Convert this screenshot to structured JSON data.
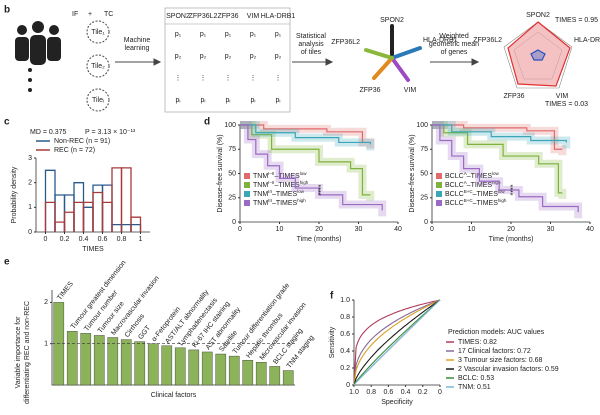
{
  "panel_b": {
    "label": "b",
    "inputs": [
      "IF",
      "+",
      "TC"
    ],
    "tiles": [
      "Tile₁",
      "Tile₂",
      "Tileᵢ"
    ],
    "step1": [
      "Machine",
      "learning"
    ],
    "table": {
      "header": [
        "SPON2",
        "ZFP36L2",
        "ZFP36",
        "VIM",
        "HLA-DRB1"
      ],
      "rows": [
        "p₁",
        "p₂",
        "⋮",
        "pᵢ"
      ]
    },
    "step2": [
      "Statistical",
      "analysis",
      "of tiles"
    ],
    "star_genes": [
      "SPON2",
      "HLA-DRB1",
      "VIM",
      "ZFP36",
      "ZFP36L2"
    ],
    "step3": [
      "Weighted",
      "geometric mean",
      "of genes"
    ],
    "radar_genes": [
      "SPON2",
      "HLA-DRB1",
      "VIM",
      "ZFP36",
      "ZFP36L2"
    ],
    "times_high": "TIMES = 0.95",
    "times_low": "TIMES = 0.03"
  },
  "panel_c": {
    "label": "c",
    "stats": [
      "MD = 0.375",
      "P = 3.13 × 10⁻¹³"
    ],
    "xlabel": "TIMES",
    "ylabel": "Probability density",
    "bins": [
      0,
      0.1,
      0.2,
      0.3,
      0.4,
      0.5,
      0.6,
      0.7,
      0.8,
      0.9,
      1.0
    ],
    "series": [
      {
        "name": "Non-REC (n = 91)",
        "color": "#2a5a8c",
        "values": [
          2.5,
          1.5,
          1.5,
          2.0,
          1.0,
          1.9,
          1.9,
          0.3,
          0.3,
          0.3
        ]
      },
      {
        "name": "REC (n = 72)",
        "color": "#a83a3a",
        "values": [
          1.2,
          0.4,
          0.8,
          1.2,
          1.2,
          1.6,
          1.2,
          2.6,
          2.6,
          0.6
        ]
      }
    ],
    "xlim": [
      -0.1,
      1.1
    ],
    "ylim": [
      0,
      3
    ],
    "xticks": [
      0,
      0.2,
      0.4,
      0.6,
      0.8,
      1.0
    ],
    "yticks": [
      0,
      1,
      2,
      3
    ]
  },
  "panel_d": {
    "label": "d",
    "ylabel": "Disease-free survival (%)",
    "xlabel": "Time (months)",
    "xlim": [
      0,
      40
    ],
    "ylim": [
      0,
      100
    ],
    "xticks": [
      0,
      10,
      20,
      30,
      40
    ],
    "yticks": [
      0,
      25,
      50,
      75,
      100
    ],
    "stars": "****",
    "plots": [
      {
        "series": [
          {
            "name": [
              "TNM",
              "I–II",
              "–TIMES",
              "low"
            ],
            "color": "#e06a6a",
            "x": [
              0,
              6,
              22,
              31,
              33
            ],
            "values": [
              100,
              96,
              93,
              82,
              82
            ]
          },
          {
            "name": [
              "TNM",
              "I–II",
              "–TIMES",
              "high"
            ],
            "color": "#7fb23a",
            "x": [
              0,
              3,
              8,
              20,
              28,
              31,
              33
            ],
            "values": [
              100,
              90,
              75,
              62,
              55,
              28,
              28
            ]
          },
          {
            "name": [
              "TNM",
              "III",
              "–TIMES",
              "low"
            ],
            "color": "#3aa6b8",
            "x": [
              0,
              4,
              14,
              25,
              33
            ],
            "values": [
              100,
              92,
              87,
              82,
              80
            ]
          },
          {
            "name": [
              "TNM",
              "III",
              "–TIMES",
              "high"
            ],
            "color": "#9b6ac4",
            "x": [
              0,
              2,
              4,
              7,
              10,
              14,
              20,
              26,
              36
            ],
            "values": [
              100,
              85,
              70,
              58,
              45,
              35,
              28,
              18,
              12
            ]
          }
        ]
      },
      {
        "series": [
          {
            "name": [
              "BCLC",
              "A",
              "–TIMES",
              "low"
            ],
            "color": "#e06a6a",
            "x": [
              0,
              8,
              24,
              31,
              33
            ],
            "values": [
              100,
              97,
              94,
              75,
              75
            ]
          },
          {
            "name": [
              "BCLC",
              "A",
              "–TIMES",
              "high"
            ],
            "color": "#7fb23a",
            "x": [
              0,
              3,
              9,
              18,
              27,
              32,
              33
            ],
            "values": [
              100,
              92,
              80,
              68,
              60,
              30,
              30
            ]
          },
          {
            "name": [
              "BCLC",
              "B+C",
              "–TIMES",
              "low"
            ],
            "color": "#3aa6b8",
            "x": [
              0,
              5,
              15,
              25,
              34
            ],
            "values": [
              100,
              93,
              88,
              84,
              82
            ]
          },
          {
            "name": [
              "BCLC",
              "B+C",
              "–TIMES",
              "high"
            ],
            "color": "#9b6ac4",
            "x": [
              0,
              2,
              5,
              8,
              12,
              17,
              22,
              28,
              37
            ],
            "values": [
              100,
              84,
              68,
              55,
              42,
              33,
              26,
              16,
              10
            ]
          }
        ]
      }
    ]
  },
  "panel_e": {
    "label": "e",
    "ylabel": [
      "Variable importance for",
      "differentiating REC and non-REC"
    ],
    "xlabel": "Clinical factors",
    "color": "#8db35a",
    "categories": [
      "TIMES",
      "Tumour greatest dimension",
      "Tumour number",
      "Tumour size",
      "Macrovascular invasion",
      "Cirrhosis",
      "GGT",
      "α-Fetoprotein",
      "AST/ALT abnormality",
      "Lymphadenectasis",
      "Ki-67 IHC staining",
      "AST abnormality",
      "Satellite",
      "Tumour differentiation grade",
      "Hepatic thrombus",
      "Microvascular invasion",
      "BCLC staging",
      "TNM staging"
    ],
    "values": [
      2.0,
      1.3,
      1.25,
      1.2,
      1.15,
      1.1,
      1.05,
      1.0,
      0.95,
      0.9,
      0.85,
      0.8,
      0.75,
      0.7,
      0.6,
      0.55,
      0.45,
      0.35
    ],
    "ylim": [
      0,
      2.3
    ],
    "yticks": [
      1,
      2
    ],
    "reference": 1
  },
  "panel_f": {
    "label": "f",
    "ylabel": "Sensitivity",
    "xlabel": "Specificity",
    "xticks": [
      {
        "value": 1,
        "label": "1.0"
      },
      0.8,
      0.6,
      0.4,
      0.2,
      0
    ],
    "yticks": [
      0,
      0.2,
      0.4,
      0.6,
      0.8,
      {
        "value": 1,
        "label": "1.0"
      }
    ],
    "legend_title": "Prediction models: AUC values",
    "series": [
      {
        "color": "#b03a5a",
        "value": 0.82,
        "value_label": "TIMES: 0.82"
      },
      {
        "color": "#8a6a9a",
        "value": 0.72,
        "value_label": "17 Clinical factors: 0.72"
      },
      {
        "color": "#d8a020",
        "value": 0.68,
        "value_label": "3 Tumour size factors: 0.68"
      },
      {
        "color": "#1a1a1a",
        "value": 0.59,
        "value_label": "2 Vascular invasion factors: 0.59"
      },
      {
        "color": "#3a8a3a",
        "value": 0.53,
        "value_label": "BCLC: 0.53"
      },
      {
        "color": "#7ab8d8",
        "value": 0.51,
        "value_label": "TNM: 0.51"
      }
    ]
  }
}
